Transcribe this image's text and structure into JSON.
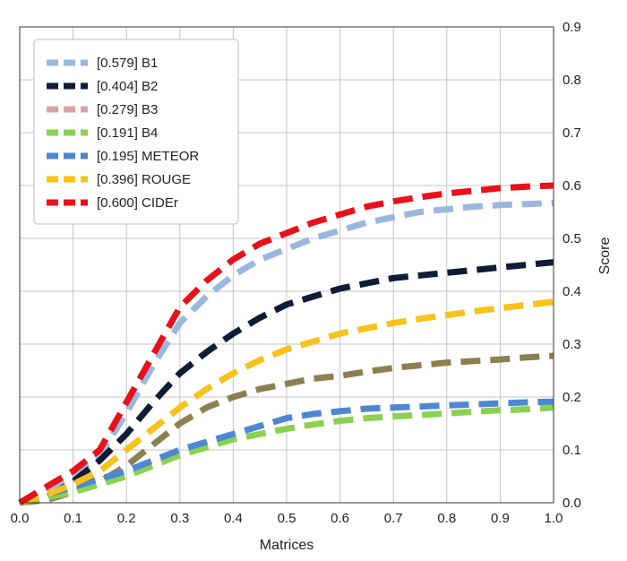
{
  "chart_data": {
    "type": "line",
    "title": "",
    "xlabel": "Matrices",
    "ylabel": "Score",
    "xlim": [
      0.0,
      1.0
    ],
    "ylim": [
      0.0,
      0.9
    ],
    "x_ticks": [
      "0.0",
      "0.1",
      "0.2",
      "0.3",
      "0.4",
      "0.5",
      "0.6",
      "0.7",
      "0.8",
      "0.9",
      "1.0"
    ],
    "y_ticks": [
      "0.0",
      "0.1",
      "0.2",
      "0.3",
      "0.4",
      "0.5",
      "0.6",
      "0.7",
      "0.8",
      "0.9"
    ],
    "y_axis_side": "right",
    "grid": true,
    "legend_position": "top-left",
    "line_style": "dashed",
    "x": [
      0.0,
      0.05,
      0.1,
      0.15,
      0.2,
      0.25,
      0.3,
      0.35,
      0.4,
      0.45,
      0.5,
      0.55,
      0.6,
      0.65,
      0.7,
      0.75,
      0.8,
      0.85,
      0.9,
      0.95,
      1.0
    ],
    "series": [
      {
        "name": "[0.579] B1",
        "color": "#9ab7dd",
        "values": [
          0.0,
          0.02,
          0.05,
          0.09,
          0.17,
          0.26,
          0.34,
          0.39,
          0.43,
          0.46,
          0.48,
          0.5,
          0.515,
          0.53,
          0.54,
          0.55,
          0.555,
          0.56,
          0.563,
          0.565,
          0.567
        ]
      },
      {
        "name": "[0.404] B2",
        "color": "#0e1c36",
        "values": [
          0.0,
          0.01,
          0.04,
          0.08,
          0.13,
          0.19,
          0.245,
          0.285,
          0.32,
          0.35,
          0.375,
          0.39,
          0.405,
          0.415,
          0.425,
          0.43,
          0.435,
          0.44,
          0.445,
          0.45,
          0.455
        ]
      },
      {
        "name": "[0.279] B3",
        "color": "#8c8052",
        "values": [
          0.0,
          0.005,
          0.02,
          0.04,
          0.07,
          0.11,
          0.15,
          0.18,
          0.2,
          0.215,
          0.225,
          0.235,
          0.24,
          0.248,
          0.255,
          0.26,
          0.265,
          0.268,
          0.271,
          0.275,
          0.278
        ]
      },
      {
        "name": "[0.191] B4",
        "color": "#8bd150",
        "values": [
          0.0,
          0.01,
          0.02,
          0.035,
          0.05,
          0.07,
          0.09,
          0.105,
          0.12,
          0.13,
          0.14,
          0.148,
          0.155,
          0.16,
          0.163,
          0.166,
          0.169,
          0.172,
          0.175,
          0.177,
          0.18
        ]
      },
      {
        "name": "[0.195] METEOR",
        "color": "#4f86d1",
        "values": [
          0.0,
          0.015,
          0.03,
          0.045,
          0.06,
          0.08,
          0.1,
          0.115,
          0.13,
          0.145,
          0.16,
          0.168,
          0.173,
          0.178,
          0.18,
          0.182,
          0.184,
          0.186,
          0.188,
          0.19,
          0.191
        ]
      },
      {
        "name": "[0.396] ROUGE",
        "color": "#f7c21a",
        "values": [
          0.0,
          0.015,
          0.035,
          0.06,
          0.1,
          0.14,
          0.18,
          0.215,
          0.245,
          0.27,
          0.29,
          0.305,
          0.32,
          0.33,
          0.34,
          0.348,
          0.355,
          0.362,
          0.368,
          0.374,
          0.38
        ]
      },
      {
        "name": "[0.600] CIDEr",
        "color": "#e8101a",
        "values": [
          0.0,
          0.03,
          0.06,
          0.1,
          0.19,
          0.28,
          0.37,
          0.42,
          0.46,
          0.49,
          0.51,
          0.53,
          0.545,
          0.56,
          0.57,
          0.578,
          0.585,
          0.59,
          0.595,
          0.598,
          0.6
        ]
      }
    ],
    "legend_marker_colors": [
      "#9ab7dd",
      "#0e1c36",
      "#d9a3a3",
      "#8bd150",
      "#4f86d1",
      "#f7c21a",
      "#e8101a"
    ]
  }
}
